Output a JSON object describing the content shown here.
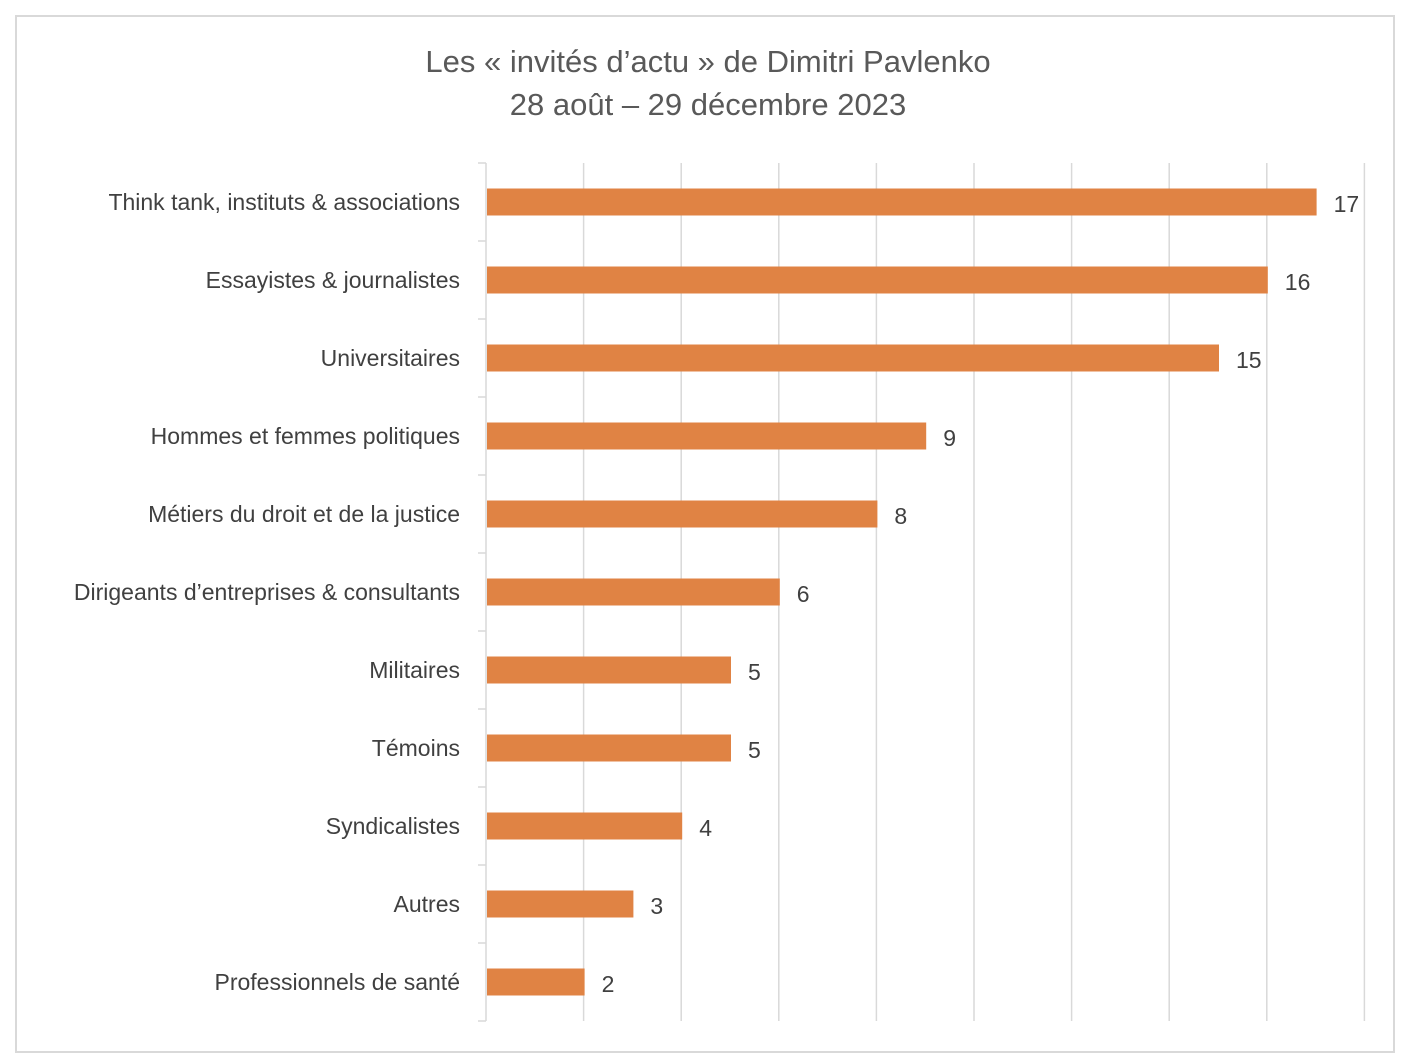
{
  "chart_data": {
    "type": "bar",
    "orientation": "horizontal",
    "title": "Les « invités d’actu » de Dimitri Pavlenko",
    "subtitle": "28 août – 29 décembre 2023",
    "categories": [
      "Think tank, instituts & associations",
      "Essayistes & journalistes",
      "Universitaires",
      "Hommes et femmes politiques",
      "Métiers du droit et de la justice",
      "Dirigeants d’entreprises & consultants",
      "Militaires",
      "Témoins",
      "Syndicalistes",
      "Autres",
      "Professionnels de santé"
    ],
    "values": [
      17,
      16,
      15,
      9,
      8,
      6,
      5,
      5,
      4,
      3,
      2
    ],
    "data_labels": [
      "17",
      "16",
      "15",
      "9",
      "8",
      "6",
      "5",
      "5",
      "4",
      "3",
      "2"
    ],
    "xlim": [
      0,
      18
    ],
    "grid": true,
    "legend": "none",
    "bar_color": "#E08344",
    "grid_color": "#d9d9d9",
    "text_color": "#404040",
    "title_color": "#595959"
  }
}
